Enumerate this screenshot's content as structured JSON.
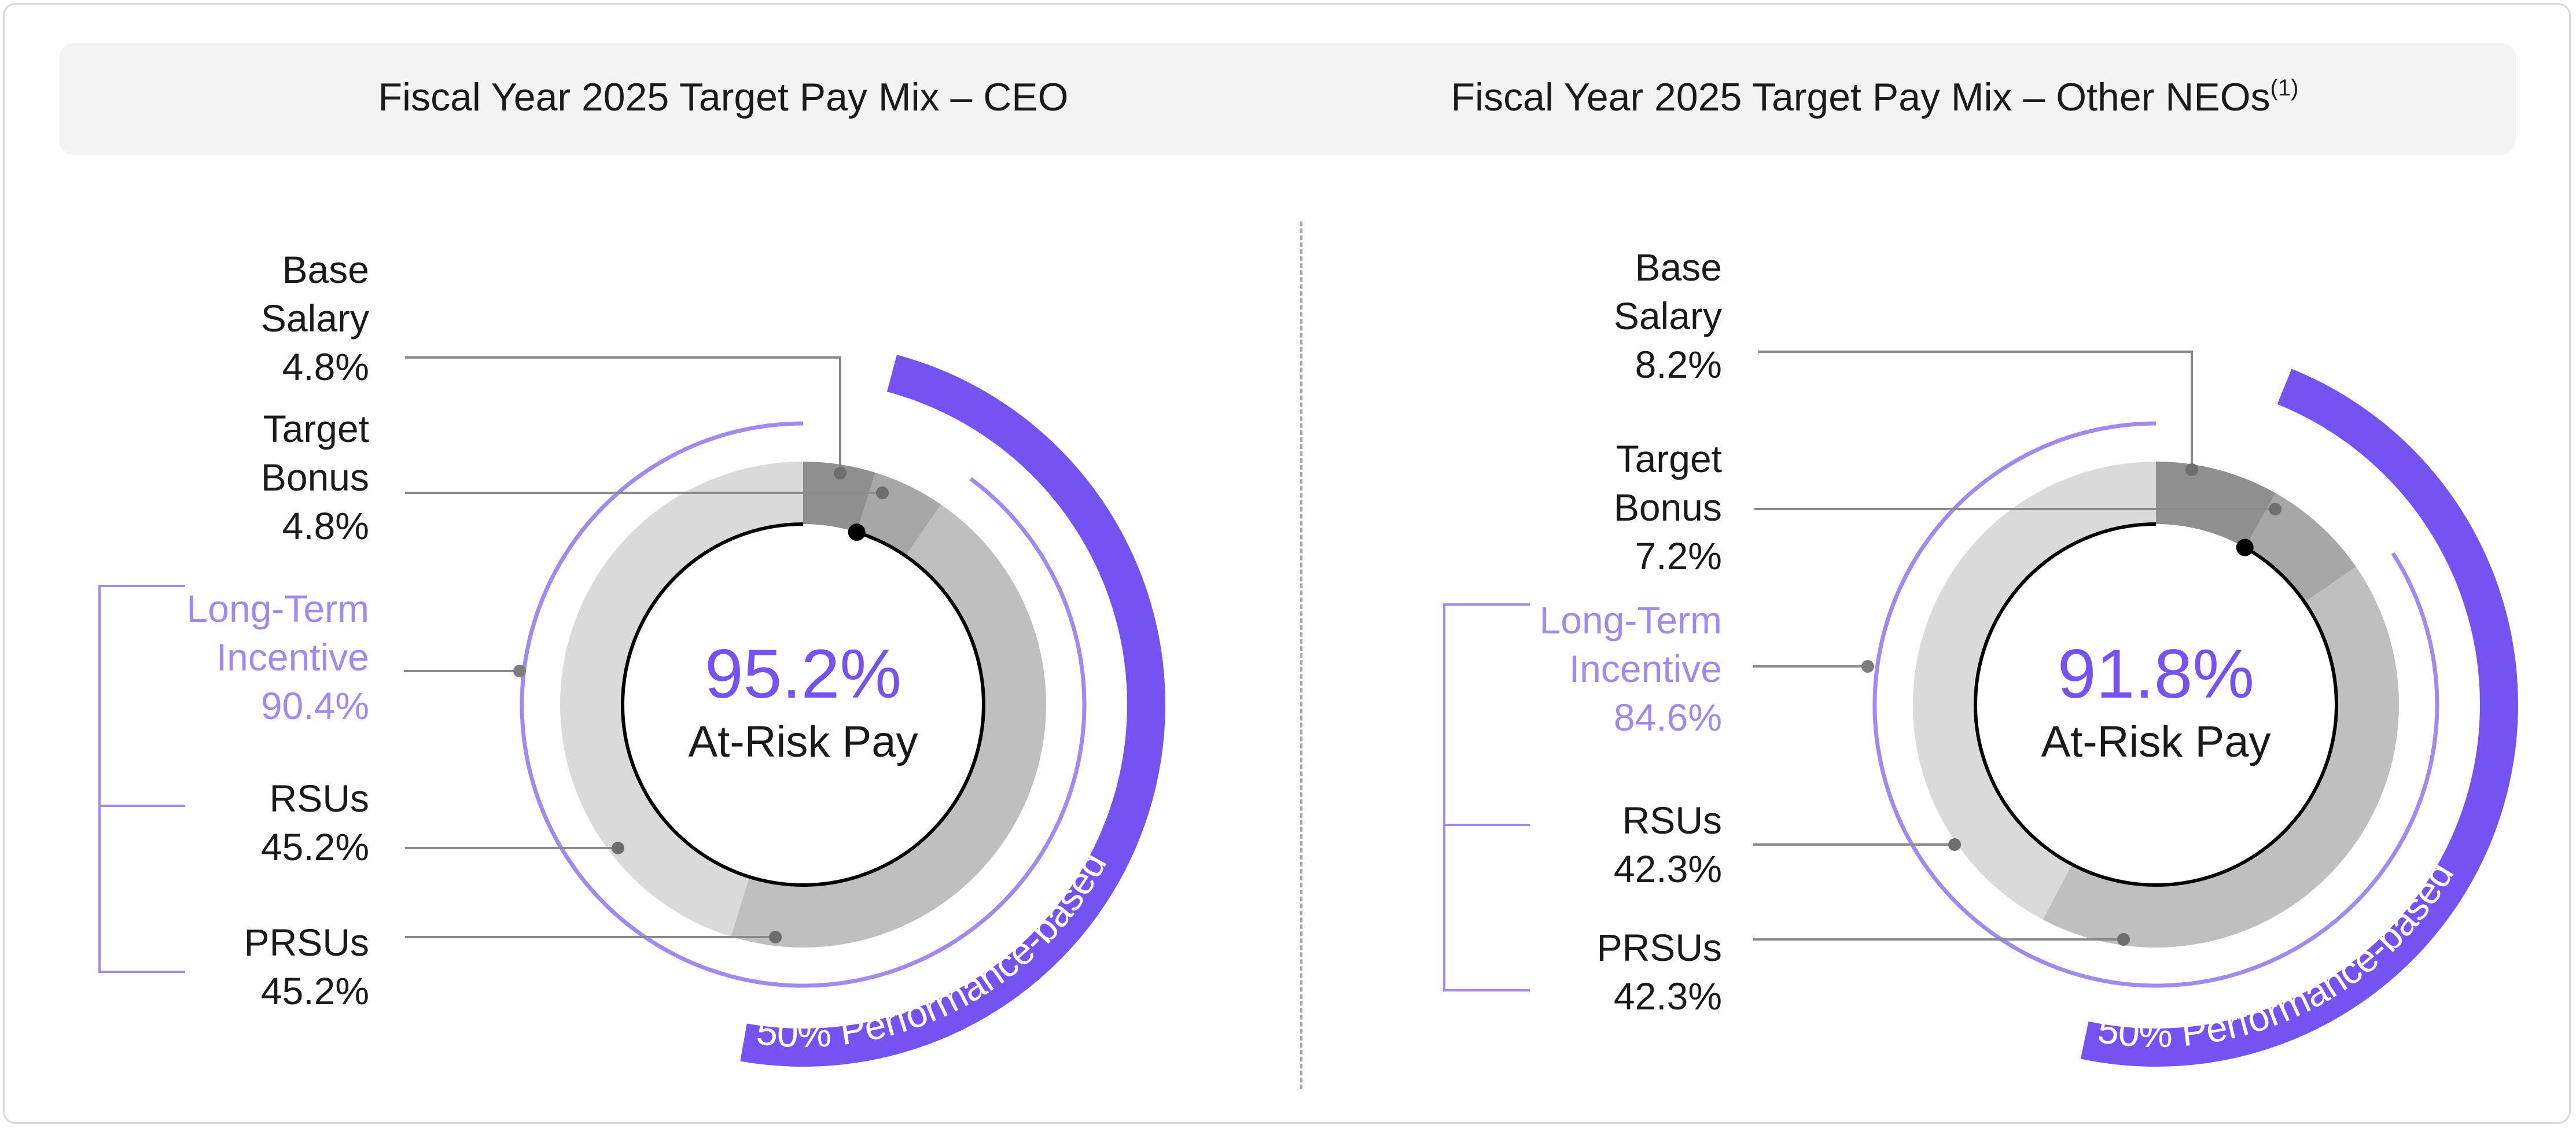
{
  "colors": {
    "base_salary": "#8f8f8f",
    "target_bonus": "#a7a7a7",
    "rsus": "#dadada",
    "prsus": "#bfbfbf",
    "lti_ring": "#a08af0",
    "performance_band": "#7552f2",
    "at_risk_pct": "#7552f2"
  },
  "charts": {
    "ceo": {
      "title": "Fiscal Year 2025 Target Pay Mix – CEO",
      "center_pct": "95.2%",
      "center_caption": "At-Risk Pay",
      "band_label": "50% Performance-based",
      "labels": {
        "base_name1": "Base",
        "base_name2": "Salary",
        "base_pct": "4.8%",
        "bonus_name1": "Target",
        "bonus_name2": "Bonus",
        "bonus_pct": "4.8%",
        "lti_name1": "Long-Term",
        "lti_name2": "Incentive",
        "lti_pct": "90.4%",
        "rsu_name": "RSUs",
        "rsu_pct": "45.2%",
        "prsu_name": "PRSUs",
        "prsu_pct": "45.2%"
      }
    },
    "neo": {
      "title": "Fiscal Year 2025 Target Pay Mix – Other NEOs",
      "title_footnote": "(1)",
      "center_pct": "91.8%",
      "center_caption": "At-Risk Pay",
      "band_label": "50% Performance-based",
      "labels": {
        "base_name1": "Base",
        "base_name2": "Salary",
        "base_pct": "8.2%",
        "bonus_name1": "Target",
        "bonus_name2": "Bonus",
        "bonus_pct": "7.2%",
        "lti_name1": "Long-Term",
        "lti_name2": "Incentive",
        "lti_pct": "84.6%",
        "rsu_name": "RSUs",
        "rsu_pct": "42.3%",
        "prsu_name": "PRSUs",
        "prsu_pct": "42.3%"
      }
    }
  },
  "chart_data": [
    {
      "type": "pie",
      "title": "Fiscal Year 2025 Target Pay Mix – CEO",
      "categories": [
        "Base Salary",
        "Target Bonus",
        "RSUs",
        "PRSUs"
      ],
      "values": [
        4.8,
        4.8,
        45.2,
        45.2
      ],
      "groups": [
        {
          "name": "Long-Term Incentive",
          "value": 90.4,
          "members": [
            "RSUs",
            "PRSUs"
          ]
        }
      ],
      "annotations": [
        "95.2% At-Risk Pay",
        "50% Performance-based"
      ]
    },
    {
      "type": "pie",
      "title": "Fiscal Year 2025 Target Pay Mix – Other NEOs(1)",
      "categories": [
        "Base Salary",
        "Target Bonus",
        "RSUs",
        "PRSUs"
      ],
      "values": [
        8.2,
        7.2,
        42.3,
        42.3
      ],
      "groups": [
        {
          "name": "Long-Term Incentive",
          "value": 84.6,
          "members": [
            "RSUs",
            "PRSUs"
          ]
        }
      ],
      "annotations": [
        "91.8% At-Risk Pay",
        "50% Performance-based"
      ]
    }
  ]
}
